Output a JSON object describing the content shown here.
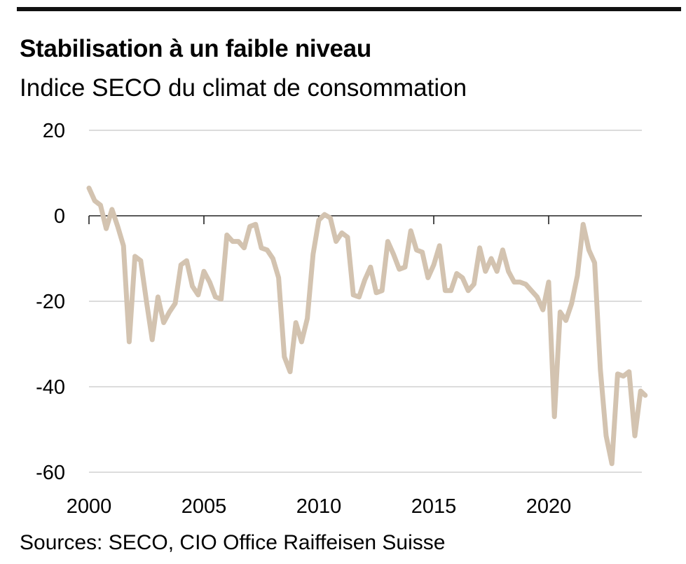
{
  "chart_data": {
    "type": "line",
    "title": "Stabilisation à un faible niveau",
    "subtitle": "Indice SECO du climat de consommation",
    "source": "Sources: SECO, CIO Office Raiffeisen Suisse",
    "xlabel": "",
    "ylabel": "",
    "xlim": [
      2000,
      2024.2
    ],
    "ylim": [
      -60,
      20
    ],
    "x_ticks": [
      2000,
      2005,
      2010,
      2015,
      2020
    ],
    "y_ticks": [
      20,
      0,
      -20,
      -40,
      -60
    ],
    "grid": "horizontal",
    "legend": "none",
    "line_color": "#d3c3b0",
    "series": [
      {
        "x": [
          2000.0,
          2000.25,
          2000.5,
          2000.75,
          2001.0,
          2001.25,
          2001.5,
          2001.75,
          2002.0,
          2002.25,
          2002.5,
          2002.75,
          2003.0,
          2003.25,
          2003.5,
          2003.75,
          2004.0,
          2004.25,
          2004.5,
          2004.75,
          2005.0,
          2005.25,
          2005.5,
          2005.75,
          2006.0,
          2006.25,
          2006.5,
          2006.75,
          2007.0,
          2007.25,
          2007.5,
          2007.75,
          2008.0,
          2008.25,
          2008.5,
          2008.75,
          2009.0,
          2009.25,
          2009.5,
          2009.75,
          2010.0,
          2010.25,
          2010.5,
          2010.75,
          2011.0,
          2011.25,
          2011.5,
          2011.75,
          2012.0,
          2012.25,
          2012.5,
          2012.75,
          2013.0,
          2013.25,
          2013.5,
          2013.75,
          2014.0,
          2014.25,
          2014.5,
          2014.75,
          2015.0,
          2015.25,
          2015.5,
          2015.75,
          2016.0,
          2016.25,
          2016.5,
          2016.75,
          2017.0,
          2017.25,
          2017.5,
          2017.75,
          2018.0,
          2018.25,
          2018.5,
          2018.75,
          2019.0,
          2019.25,
          2019.5,
          2019.75,
          2020.0,
          2020.25,
          2020.5,
          2020.75,
          2021.0,
          2021.25,
          2021.5,
          2021.75,
          2022.0,
          2022.25,
          2022.5,
          2022.75,
          2023.0,
          2023.25,
          2023.5,
          2023.75,
          2024.0,
          2024.2
        ],
        "values": [
          6.5,
          3.5,
          2.5,
          -3,
          1.5,
          -2.5,
          -7,
          -29.5,
          -9.5,
          -10.5,
          -20,
          -29,
          -19,
          -25,
          -22.5,
          -20.5,
          -11.5,
          -10.5,
          -16.5,
          -18.5,
          -13,
          -15.5,
          -19,
          -19.5,
          -4.5,
          -6,
          -6,
          -7.5,
          -2.5,
          -2,
          -7.5,
          -8,
          -10,
          -14.5,
          -33,
          -36.5,
          -25,
          -29.5,
          -24,
          -9,
          -1,
          0.3,
          -0.5,
          -6,
          -4,
          -5,
          -18.5,
          -19,
          -15,
          -12,
          -18,
          -17.5,
          -6,
          -9,
          -12.5,
          -12,
          -3.5,
          -8,
          -8.5,
          -14.5,
          -11.5,
          -7,
          -17.5,
          -17.5,
          -13.5,
          -14.5,
          -17.5,
          -16,
          -7.5,
          -13,
          -10,
          -13,
          -8,
          -13,
          -15.5,
          -15.5,
          -16,
          -17.5,
          -19,
          -22,
          -15.5,
          -47,
          -22.5,
          -24.5,
          -20.5,
          -14,
          -2,
          -8,
          -11,
          -36,
          -51.5,
          -58,
          -37,
          -37.5,
          -36.5,
          -51.5,
          -41,
          -42
        ]
      }
    ]
  }
}
